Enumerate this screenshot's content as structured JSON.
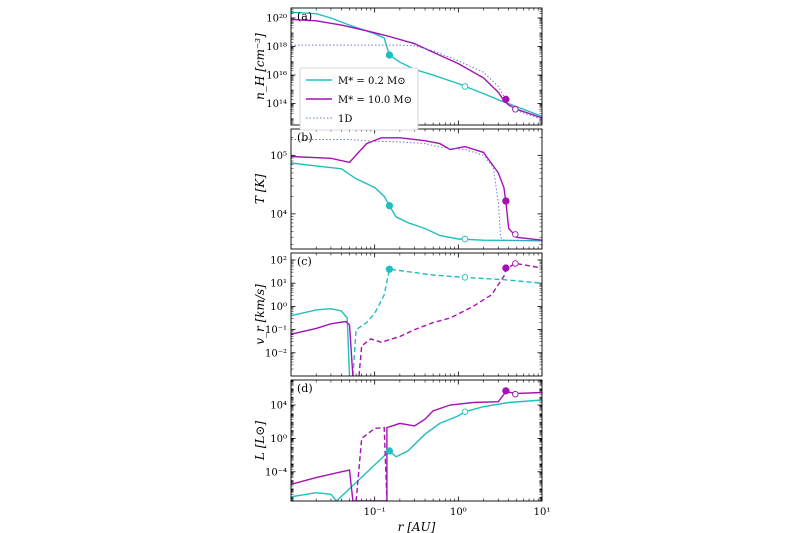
{
  "colors": {
    "low": "#1fbfbf",
    "high": "#a611b5",
    "oned": "#6a7bd1",
    "axis": "#000000"
  },
  "legend": {
    "entries": [
      {
        "label": "M* = 0.2 M⊙",
        "color": "#1fbfbf",
        "style": "solid"
      },
      {
        "label": "M* = 10.0 M⊙",
        "color": "#a611b5",
        "style": "solid"
      },
      {
        "label": "1D",
        "color": "#6a7bd1",
        "style": "dotted"
      }
    ]
  },
  "chart_data": {
    "type": "line",
    "xlabel": "r [AU]",
    "xscale": "log",
    "xlim": [
      0.01,
      10
    ],
    "xticks": [
      "10⁻¹",
      "10⁰",
      "10¹"
    ],
    "panels": [
      {
        "id": "a",
        "label": "(a)",
        "ylabel": "n_H [cm⁻³]",
        "yscale": "log",
        "ylim_log10": [
          12.5,
          20.7
        ],
        "yticks": [
          "10¹⁴",
          "10¹⁶",
          "10¹⁸",
          "10²⁰"
        ],
        "ytick_exp": [
          14,
          16,
          18,
          20
        ],
        "series": [
          {
            "name": "M* = 0.2 M⊙",
            "color": "low",
            "style": "solid",
            "points": [
              [
                0.01,
                20.4
              ],
              [
                0.02,
                20.3
              ],
              [
                0.03,
                20.0
              ],
              [
                0.05,
                19.5
              ],
              [
                0.1,
                18.9
              ],
              [
                0.13,
                18.6
              ],
              [
                0.15,
                17.4
              ],
              [
                0.2,
                16.9
              ],
              [
                0.3,
                16.4
              ],
              [
                0.5,
                16.0
              ],
              [
                1.0,
                15.4
              ],
              [
                2.0,
                14.7
              ],
              [
                3.2,
                14.2
              ],
              [
                4.0,
                14.0
              ],
              [
                10.0,
                13.1
              ]
            ]
          },
          {
            "name": "M* = 10.0 M⊙",
            "color": "high",
            "style": "solid",
            "points": [
              [
                0.01,
                19.9
              ],
              [
                0.02,
                19.8
              ],
              [
                0.04,
                19.5
              ],
              [
                0.08,
                19.1
              ],
              [
                0.15,
                18.7
              ],
              [
                0.3,
                18.2
              ],
              [
                0.5,
                17.6
              ],
              [
                1.0,
                16.8
              ],
              [
                2.0,
                15.8
              ],
              [
                3.0,
                14.8
              ],
              [
                3.5,
                14.2
              ],
              [
                4.0,
                13.9
              ],
              [
                5.0,
                13.6
              ],
              [
                10.0,
                13.0
              ]
            ]
          },
          {
            "name": "1D",
            "color": "oned",
            "style": "dotted",
            "points": [
              [
                0.01,
                18.1
              ],
              [
                0.1,
                18.1
              ],
              [
                0.2,
                18.1
              ],
              [
                0.3,
                18.05
              ],
              [
                0.5,
                17.7
              ],
              [
                1.0,
                17.0
              ],
              [
                2.0,
                16.2
              ],
              [
                3.0,
                15.2
              ],
              [
                3.5,
                14.5
              ],
              [
                4.0,
                14.0
              ],
              [
                5.0,
                13.5
              ],
              [
                10.0,
                12.9
              ]
            ]
          }
        ],
        "markers": [
          {
            "x": 0.15,
            "y": 17.4,
            "color": "low",
            "filled": true
          },
          {
            "x": 1.2,
            "y": 15.2,
            "color": "low",
            "filled": false
          },
          {
            "x": 3.7,
            "y": 14.3,
            "color": "high",
            "filled": true
          },
          {
            "x": 4.8,
            "y": 13.6,
            "color": "high",
            "filled": false
          }
        ]
      },
      {
        "id": "b",
        "label": "(b)",
        "ylabel": "T [K]",
        "yscale": "log",
        "ylim_log10": [
          3.4,
          5.45
        ],
        "yticks": [
          "10⁴",
          "10⁵"
        ],
        "ytick_exp": [
          4,
          5
        ],
        "series": [
          {
            "name": "M* = 0.2 M⊙",
            "color": "low",
            "style": "solid",
            "points": [
              [
                0.01,
                4.87
              ],
              [
                0.02,
                4.82
              ],
              [
                0.04,
                4.77
              ],
              [
                0.06,
                4.6
              ],
              [
                0.1,
                4.45
              ],
              [
                0.13,
                4.3
              ],
              [
                0.15,
                4.14
              ],
              [
                0.18,
                3.95
              ],
              [
                0.25,
                3.85
              ],
              [
                0.4,
                3.75
              ],
              [
                0.6,
                3.63
              ],
              [
                1.0,
                3.57
              ],
              [
                2.0,
                3.55
              ],
              [
                10.0,
                3.54
              ]
            ]
          },
          {
            "name": "M* = 10.0 M⊙",
            "color": "high",
            "style": "solid",
            "points": [
              [
                0.01,
                4.98
              ],
              [
                0.03,
                4.95
              ],
              [
                0.05,
                4.88
              ],
              [
                0.08,
                5.2
              ],
              [
                0.12,
                5.3
              ],
              [
                0.2,
                5.3
              ],
              [
                0.4,
                5.25
              ],
              [
                0.6,
                5.2
              ],
              [
                0.8,
                5.1
              ],
              [
                1.2,
                5.15
              ],
              [
                2.0,
                5.05
              ],
              [
                3.0,
                4.7
              ],
              [
                3.5,
                4.45
              ],
              [
                3.7,
                4.2
              ],
              [
                4.0,
                3.75
              ],
              [
                5.0,
                3.6
              ],
              [
                10.0,
                3.55
              ]
            ]
          },
          {
            "name": "1D",
            "color": "oned",
            "style": "dotted",
            "points": [
              [
                0.01,
                5.27
              ],
              [
                0.05,
                5.27
              ],
              [
                0.1,
                5.24
              ],
              [
                0.2,
                5.23
              ],
              [
                0.4,
                5.2
              ],
              [
                0.6,
                5.14
              ],
              [
                0.8,
                5.12
              ],
              [
                1.2,
                5.1
              ],
              [
                2.0,
                5.0
              ],
              [
                2.6,
                4.8
              ],
              [
                3.0,
                4.2
              ],
              [
                3.2,
                3.6
              ],
              [
                3.5,
                3.55
              ],
              [
                10.0,
                3.54
              ]
            ]
          }
        ],
        "markers": [
          {
            "x": 0.15,
            "y": 4.14,
            "color": "low",
            "filled": true
          },
          {
            "x": 1.2,
            "y": 3.57,
            "color": "low",
            "filled": false
          },
          {
            "x": 3.7,
            "y": 4.22,
            "color": "high",
            "filled": true
          },
          {
            "x": 4.8,
            "y": 3.65,
            "color": "high",
            "filled": false
          }
        ]
      },
      {
        "id": "c",
        "label": "(c)",
        "ylabel": "v_r [km/s]",
        "yscale": "log",
        "ylim_log10": [
          -3.0,
          2.3
        ],
        "yticks": [
          "10⁻²",
          "10⁻¹",
          "10⁰",
          "10¹",
          "10²"
        ],
        "ytick_exp": [
          -2,
          -1,
          0,
          1,
          2
        ],
        "series": [
          {
            "name": "M* = 0.2 M⊙ (v<0)",
            "color": "low",
            "style": "solid",
            "points": [
              [
                0.01,
                -0.4
              ],
              [
                0.02,
                -0.15
              ],
              [
                0.03,
                -0.1
              ],
              [
                0.04,
                -0.2
              ],
              [
                0.047,
                -0.5
              ],
              [
                0.05,
                -3.0
              ]
            ]
          },
          {
            "name": "M* = 0.2 M⊙ (v>0)",
            "color": "low",
            "style": "dashed",
            "points": [
              [
                0.055,
                -3.0
              ],
              [
                0.06,
                -1.0
              ],
              [
                0.08,
                -0.7
              ],
              [
                0.1,
                -0.3
              ],
              [
                0.13,
                0.5
              ],
              [
                0.15,
                1.6
              ],
              [
                0.5,
                1.35
              ],
              [
                1.2,
                1.25
              ],
              [
                3.5,
                1.15
              ],
              [
                10.0,
                1.0
              ]
            ]
          },
          {
            "name": "M* = 10.0 M⊙ (v<0)",
            "color": "high",
            "style": "solid",
            "points": [
              [
                0.01,
                -1.2
              ],
              [
                0.02,
                -0.95
              ],
              [
                0.03,
                -0.75
              ],
              [
                0.045,
                -0.65
              ],
              [
                0.05,
                -0.8
              ],
              [
                0.055,
                -3.0
              ]
            ]
          },
          {
            "name": "M* = 10.0 M⊙ (v>0)",
            "color": "high",
            "style": "dashed",
            "points": [
              [
                0.065,
                -3.0
              ],
              [
                0.07,
                -1.7
              ],
              [
                0.09,
                -1.4
              ],
              [
                0.12,
                -1.55
              ],
              [
                0.2,
                -1.3
              ],
              [
                0.3,
                -1.0
              ],
              [
                0.5,
                -0.7
              ],
              [
                0.8,
                -0.5
              ],
              [
                1.5,
                0.0
              ],
              [
                2.5,
                0.5
              ],
              [
                3.5,
                1.3
              ],
              [
                3.7,
                1.6
              ],
              [
                4.8,
                1.85
              ],
              [
                10.0,
                1.65
              ]
            ]
          }
        ],
        "markers": [
          {
            "x": 0.15,
            "y": 1.6,
            "color": "low",
            "filled": true
          },
          {
            "x": 1.2,
            "y": 1.25,
            "color": "low",
            "filled": false
          },
          {
            "x": 3.7,
            "y": 1.65,
            "color": "high",
            "filled": true
          },
          {
            "x": 4.8,
            "y": 1.85,
            "color": "high",
            "filled": false
          }
        ]
      },
      {
        "id": "d",
        "label": "(d)",
        "ylabel": "L [L⊙]",
        "yscale": "log",
        "ylim_log10": [
          -7.5,
          7.0
        ],
        "yticks": [
          "10⁻⁴",
          "10⁰",
          "10⁴"
        ],
        "ytick_exp": [
          -4,
          0,
          4
        ],
        "series": [
          {
            "name": "M* = 0.2 M⊙",
            "color": "low",
            "style": "solid",
            "points": [
              [
                0.01,
                -7.0
              ],
              [
                0.02,
                -6.5
              ],
              [
                0.03,
                -6.7
              ],
              [
                0.035,
                -7.5
              ],
              [
                0.15,
                -1.5
              ],
              [
                0.18,
                -2.2
              ],
              [
                0.25,
                -1.5
              ],
              [
                0.4,
                0.5
              ],
              [
                0.6,
                1.8
              ],
              [
                1.0,
                2.7
              ],
              [
                1.2,
                3.2
              ],
              [
                2.0,
                3.8
              ],
              [
                4.0,
                4.3
              ],
              [
                10.0,
                4.6
              ]
            ]
          },
          {
            "name": "M* = 10.0 M⊙",
            "color": "high",
            "style": "solid",
            "points": [
              [
                0.01,
                -5.5
              ],
              [
                0.02,
                -4.7
              ],
              [
                0.04,
                -4.0
              ],
              [
                0.05,
                -3.8
              ],
              [
                0.055,
                -7.5
              ],
              [
                0.14,
                -7.5
              ],
              [
                0.14,
                1.3
              ],
              [
                0.2,
                1.8
              ],
              [
                0.3,
                1.5
              ],
              [
                0.4,
                2.3
              ],
              [
                0.5,
                3.3
              ],
              [
                0.8,
                4.0
              ],
              [
                1.5,
                4.3
              ],
              [
                3.0,
                4.4
              ],
              [
                3.7,
                5.6
              ],
              [
                5.0,
                5.4
              ],
              [
                10.0,
                5.5
              ]
            ]
          },
          {
            "name": "M* = 10.0 M⊙ (dashed)",
            "color": "high",
            "style": "dashed",
            "points": [
              [
                0.06,
                -7.5
              ],
              [
                0.07,
                0.0
              ],
              [
                0.1,
                1.2
              ],
              [
                0.13,
                1.3
              ],
              [
                0.14,
                -7.5
              ]
            ]
          }
        ],
        "markers": [
          {
            "x": 0.15,
            "y": -1.5,
            "color": "low",
            "filled": true
          },
          {
            "x": 1.2,
            "y": 3.2,
            "color": "low",
            "filled": false
          },
          {
            "x": 3.7,
            "y": 5.7,
            "color": "high",
            "filled": true
          },
          {
            "x": 4.8,
            "y": 5.3,
            "color": "high",
            "filled": false
          }
        ]
      }
    ]
  }
}
